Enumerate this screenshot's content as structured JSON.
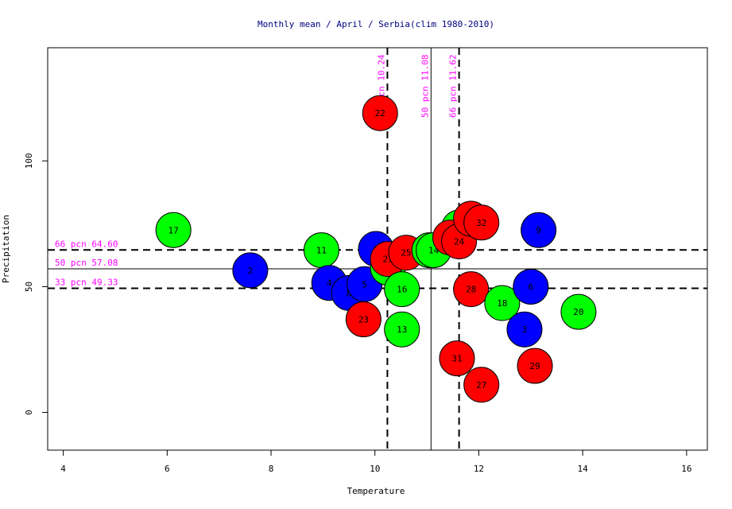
{
  "chart_data": {
    "type": "scatter",
    "title": "Monthly mean / April / Serbia(clim 1980-2010)",
    "xlabel": "Temperature",
    "ylabel": "Precipitation",
    "xlim": [
      3.7,
      16.4
    ],
    "ylim": [
      -15,
      145
    ],
    "xticks": [
      4,
      6,
      8,
      10,
      12,
      14,
      16
    ],
    "yticks": [
      0,
      50,
      100
    ],
    "grid": false,
    "legend": "none",
    "colors": {
      "low": "#0000ff",
      "mid": "#00ff00",
      "high": "#ff0000",
      "percentile": "#ff00ff",
      "title": "#000080"
    },
    "vlines": [
      {
        "x": 10.24,
        "label": "33 pcn 10.24",
        "style": "dashed"
      },
      {
        "x": 11.08,
        "label": "50 pcn 11.08",
        "style": "solid"
      },
      {
        "x": 11.62,
        "label": "66 pcn 11.62",
        "style": "dashed"
      }
    ],
    "hlines": [
      {
        "y": 64.6,
        "label": "66 pcn 64.60",
        "style": "dashed"
      },
      {
        "y": 57.08,
        "label": "50 pcn 57.08",
        "style": "solid"
      },
      {
        "y": 49.33,
        "label": "33 pcn 49.33",
        "style": "dashed"
      }
    ],
    "points": [
      {
        "label": "17",
        "x": 6.12,
        "y": 72.5,
        "group": "mid"
      },
      {
        "label": "2",
        "x": 7.6,
        "y": 56.5,
        "group": "low"
      },
      {
        "label": "11",
        "x": 8.97,
        "y": 64.5,
        "group": "mid"
      },
      {
        "label": "4",
        "x": 9.12,
        "y": 51.5,
        "group": "low"
      },
      {
        "label": "8",
        "x": 9.5,
        "y": 47.5,
        "group": "low"
      },
      {
        "label": "5",
        "x": 9.8,
        "y": 51.0,
        "group": "low"
      },
      {
        "label": "23",
        "x": 9.78,
        "y": 37.0,
        "group": "high"
      },
      {
        "label": "1",
        "x": 10.02,
        "y": 65.0,
        "group": "low"
      },
      {
        "label": "19",
        "x": 10.25,
        "y": 57.5,
        "group": "mid"
      },
      {
        "label": "21",
        "x": 10.25,
        "y": 61.0,
        "group": "high"
      },
      {
        "label": "25",
        "x": 10.6,
        "y": 63.5,
        "group": "high"
      },
      {
        "label": "16",
        "x": 10.52,
        "y": 49.0,
        "group": "mid"
      },
      {
        "label": "13",
        "x": 10.52,
        "y": 33.0,
        "group": "mid"
      },
      {
        "label": "15",
        "x": 11.05,
        "y": 64.5,
        "group": "mid"
      },
      {
        "label": "14",
        "x": 11.13,
        "y": 64.5,
        "group": "mid"
      },
      {
        "label": "12",
        "x": 11.62,
        "y": 73.5,
        "group": "mid"
      },
      {
        "label": "30",
        "x": 11.45,
        "y": 69.5,
        "group": "high"
      },
      {
        "label": "24",
        "x": 11.62,
        "y": 68.0,
        "group": "high"
      },
      {
        "label": "26",
        "x": 11.85,
        "y": 77.0,
        "group": "high"
      },
      {
        "label": "32",
        "x": 12.05,
        "y": 75.5,
        "group": "high"
      },
      {
        "label": "28",
        "x": 11.85,
        "y": 49.0,
        "group": "high"
      },
      {
        "label": "31",
        "x": 11.58,
        "y": 21.5,
        "group": "high"
      },
      {
        "label": "27",
        "x": 12.05,
        "y": 11.0,
        "group": "high"
      },
      {
        "label": "18",
        "x": 12.45,
        "y": 43.5,
        "group": "mid"
      },
      {
        "label": "3",
        "x": 12.88,
        "y": 33.0,
        "group": "low"
      },
      {
        "label": "6",
        "x": 13.0,
        "y": 50.0,
        "group": "low"
      },
      {
        "label": "9",
        "x": 13.15,
        "y": 72.5,
        "group": "low"
      },
      {
        "label": "29",
        "x": 13.08,
        "y": 18.5,
        "group": "high"
      },
      {
        "label": "20",
        "x": 13.92,
        "y": 40.0,
        "group": "mid"
      },
      {
        "label": "22",
        "x": 10.1,
        "y": 119.0,
        "group": "high"
      }
    ]
  }
}
